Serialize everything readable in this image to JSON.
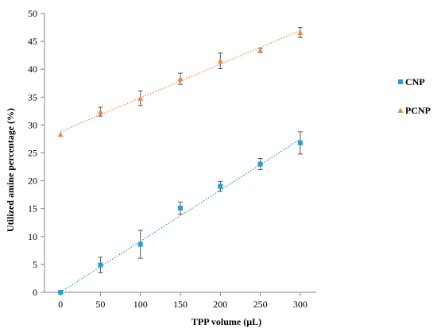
{
  "chart_data": {
    "type": "scatter",
    "xlabel": "TPP volume (µL)",
    "ylabel": "Utilized amine percentage (%)",
    "x_ticks": [
      0,
      50,
      100,
      150,
      200,
      250,
      300
    ],
    "y_ticks": [
      0,
      5,
      10,
      15,
      20,
      25,
      30,
      35,
      40,
      45,
      50
    ],
    "xlim": [
      -20,
      320
    ],
    "ylim": [
      0,
      50
    ],
    "grid": false,
    "legend_position": "right",
    "trendline_style": "dotted",
    "series": [
      {
        "name": "CNP",
        "marker": "square",
        "color": "#2E9BD6",
        "x": [
          0,
          50,
          100,
          150,
          200,
          250,
          300
        ],
        "y": [
          0,
          4.9,
          8.6,
          15.1,
          19.0,
          23.0,
          26.8
        ],
        "error": [
          0,
          1.4,
          2.5,
          1.1,
          0.9,
          1.0,
          2.0
        ],
        "trendline": {
          "slope": 0.0915,
          "intercept": 0
        }
      },
      {
        "name": "PCNP",
        "marker": "triangle",
        "color": "#E8894A",
        "x": [
          0,
          50,
          100,
          150,
          200,
          250,
          300
        ],
        "y": [
          28.3,
          32.4,
          34.8,
          38.3,
          41.5,
          43.4,
          46.6
        ],
        "error": [
          0,
          0.8,
          1.3,
          1.0,
          1.4,
          0.4,
          0.9
        ],
        "trendline": {
          "slope": 0.0605,
          "intercept": 28.8
        }
      }
    ]
  }
}
